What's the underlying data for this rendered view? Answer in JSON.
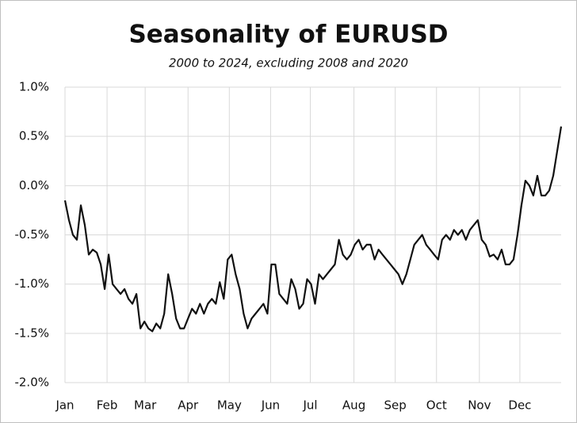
{
  "chart_data": {
    "type": "line",
    "title": "Seasonality of EURUSD",
    "subtitle": "2000 to 2024, excluding 2008 and 2020",
    "series": [
      {
        "name": "EURUSD",
        "color": "#111111",
        "values": [
          -0.15,
          -0.35,
          -0.5,
          -0.55,
          -0.2,
          -0.4,
          -0.7,
          -0.65,
          -0.68,
          -0.8,
          -1.05,
          -0.7,
          -1.0,
          -1.05,
          -1.1,
          -1.05,
          -1.15,
          -1.2,
          -1.1,
          -1.45,
          -1.38,
          -1.45,
          -1.48,
          -1.4,
          -1.45,
          -1.3,
          -0.9,
          -1.1,
          -1.35,
          -1.45,
          -1.45,
          -1.35,
          -1.25,
          -1.3,
          -1.2,
          -1.3,
          -1.2,
          -1.15,
          -1.2,
          -0.98,
          -1.15,
          -0.75,
          -0.7,
          -0.9,
          -1.05,
          -1.3,
          -1.45,
          -1.35,
          -1.3,
          -1.25,
          -1.2,
          -1.3,
          -0.8,
          -0.8,
          -1.1,
          -1.15,
          -1.2,
          -0.95,
          -1.05,
          -1.25,
          -1.2,
          -0.95,
          -1.0,
          -1.2,
          -0.9,
          -0.95,
          -0.9,
          -0.85,
          -0.8,
          -0.55,
          -0.7,
          -0.75,
          -0.7,
          -0.6,
          -0.55,
          -0.65,
          -0.6,
          -0.6,
          -0.75,
          -0.65,
          -0.7,
          -0.75,
          -0.8,
          -0.85,
          -0.9,
          -1.0,
          -0.9,
          -0.75,
          -0.6,
          -0.55,
          -0.5,
          -0.6,
          -0.65,
          -0.7,
          -0.75,
          -0.55,
          -0.5,
          -0.55,
          -0.45,
          -0.5,
          -0.45,
          -0.55,
          -0.45,
          -0.4,
          -0.35,
          -0.55,
          -0.6,
          -0.72,
          -0.7,
          -0.75,
          -0.65,
          -0.8,
          -0.8,
          -0.75,
          -0.5,
          -0.2,
          0.05,
          0.0,
          -0.1,
          0.1,
          -0.1,
          -0.1,
          -0.05,
          0.1,
          0.35,
          0.6
        ]
      }
    ],
    "xlim": [
      0,
      125
    ],
    "xticks": [
      {
        "value": 0,
        "label": "Jan"
      },
      {
        "value": 10.6,
        "label": "Feb"
      },
      {
        "value": 20.2,
        "label": "Mar"
      },
      {
        "value": 31,
        "label": "Apr"
      },
      {
        "value": 41.4,
        "label": "May"
      },
      {
        "value": 51.8,
        "label": "Jun"
      },
      {
        "value": 61.8,
        "label": "Jul"
      },
      {
        "value": 72.8,
        "label": "Aug"
      },
      {
        "value": 83.2,
        "label": "Sep"
      },
      {
        "value": 93.6,
        "label": "Oct"
      },
      {
        "value": 104.4,
        "label": "Nov"
      },
      {
        "value": 114.6,
        "label": "Dec"
      }
    ],
    "ylim": [
      -2.0,
      1.0
    ],
    "yticks": [
      {
        "value": -2.0,
        "label": "-2.0%"
      },
      {
        "value": -1.5,
        "label": "-1.5%"
      },
      {
        "value": -1.0,
        "label": "-1.0%"
      },
      {
        "value": -0.5,
        "label": "-0.5%"
      },
      {
        "value": 0.0,
        "label": "0.0%"
      },
      {
        "value": 0.5,
        "label": "0.5%"
      },
      {
        "value": 1.0,
        "label": "1.0%"
      }
    ],
    "grid": true
  }
}
